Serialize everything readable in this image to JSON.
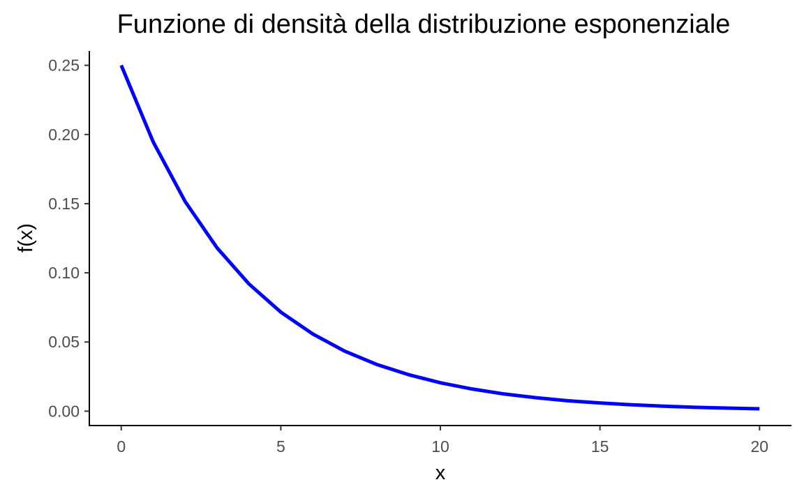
{
  "chart_data": {
    "type": "line",
    "title": "Funzione di densità della distribuzione esponenziale",
    "xlabel": "x",
    "ylabel": "f(x)",
    "xlim": [
      -1,
      21
    ],
    "ylim": [
      -0.0104,
      0.2604
    ],
    "x_ticks": [
      0,
      5,
      10,
      15,
      20
    ],
    "x_tick_labels": [
      "0",
      "5",
      "10",
      "15",
      "20"
    ],
    "y_ticks": [
      0.0,
      0.05,
      0.1,
      0.15,
      0.2,
      0.25
    ],
    "y_tick_labels": [
      "0.00",
      "0.05",
      "0.10",
      "0.15",
      "0.20",
      "0.25"
    ],
    "grid": false,
    "legend": "none",
    "series": [
      {
        "color": "#0000ff",
        "x": [
          0,
          1,
          2,
          3,
          4,
          5,
          6,
          7,
          8,
          9,
          10,
          11,
          12,
          13,
          14,
          15,
          16,
          17,
          18,
          19,
          20
        ],
        "y": [
          0.25,
          0.1947,
          0.1516,
          0.1181,
          0.092,
          0.0716,
          0.0558,
          0.0434,
          0.0338,
          0.0264,
          0.0205,
          0.016,
          0.0124,
          0.0097,
          0.0075,
          0.0059,
          0.0046,
          0.0036,
          0.0028,
          0.0022,
          0.0017
        ]
      }
    ]
  }
}
